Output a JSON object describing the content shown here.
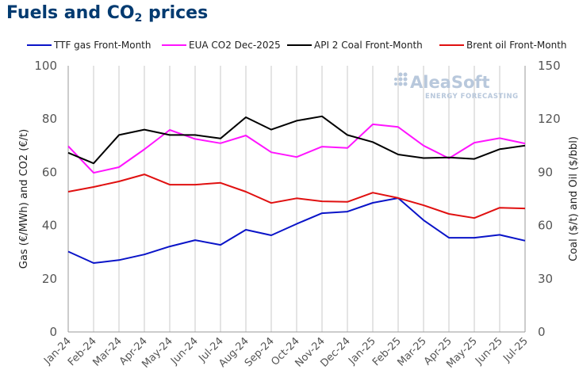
{
  "title": {
    "main": "Fuels and CO",
    "sub": "2",
    "tail": " prices"
  },
  "logo": {
    "name": "AleaSoft",
    "tagline": "ENERGY FORECASTING"
  },
  "colors": {
    "title": "#003a70",
    "grid": "#c8c8c8",
    "axis": "#999999"
  },
  "chart_data": {
    "type": "line",
    "categories": [
      "Jan-24",
      "Feb-24",
      "Mar-24",
      "Apr-24",
      "May-24",
      "Jun-24",
      "Jul-24",
      "Aug-24",
      "Sep-24",
      "Oct-24",
      "Nov-24",
      "Dec-24",
      "Jan-25",
      "Feb-25",
      "Mar-25",
      "Apr-25",
      "May-25",
      "Jun-25",
      "Jul-25"
    ],
    "y_left": {
      "label": "Gas (€/MWh) and CO2 (€/t)",
      "ylim": [
        0,
        100
      ],
      "ticks": [
        0,
        20,
        40,
        60,
        80,
        100
      ]
    },
    "y_right": {
      "label": "Coal ($/t) and Oil ($/bbl)",
      "ylim": [
        0,
        150
      ],
      "ticks": [
        0,
        30,
        60,
        90,
        120,
        150
      ]
    },
    "grid": "vertical",
    "legend_position": "top",
    "series": [
      {
        "name": "TTF gas Front-Month",
        "axis": "left",
        "color": "#0a14c8",
        "values": [
          30.2,
          25.9,
          27.0,
          29.1,
          32.1,
          34.5,
          32.7,
          38.4,
          36.3,
          40.6,
          44.6,
          45.2,
          48.5,
          50.3,
          42.0,
          35.4,
          35.4,
          36.5,
          34.3
        ]
      },
      {
        "name": "EUA CO2 Dec-2025",
        "axis": "left",
        "color": "#ff14ff",
        "values": [
          69.8,
          59.8,
          61.9,
          68.6,
          75.9,
          72.5,
          70.9,
          73.8,
          67.5,
          65.7,
          69.6,
          69.1,
          78.0,
          77.0,
          70.0,
          65.2,
          71.1,
          72.8,
          70.8
        ]
      },
      {
        "name": "API 2 Coal Front-Month",
        "axis": "right",
        "color": "#000000",
        "values": [
          101,
          95,
          111,
          114,
          111,
          111,
          109,
          121,
          114,
          119,
          121.5,
          111,
          107,
          100,
          98,
          98.3,
          97.5,
          103,
          105
        ]
      },
      {
        "name": "Brent oil Front-Month",
        "axis": "right",
        "color": "#e01010",
        "values": [
          79,
          81.7,
          84.8,
          88.8,
          83,
          83,
          84,
          79,
          72.7,
          75.3,
          73.6,
          73.3,
          78.5,
          75.5,
          71.4,
          66.5,
          64.2,
          70,
          69.6
        ]
      }
    ]
  }
}
